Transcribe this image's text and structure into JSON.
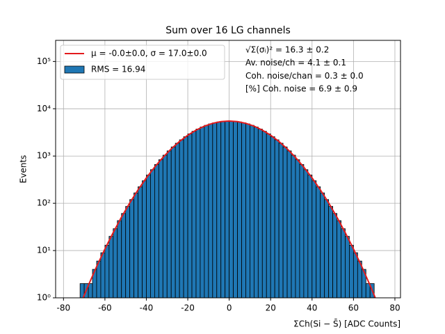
{
  "chart_data": {
    "type": "histogram",
    "title": "Sum over 16 LG channels",
    "x_label": "ΣCh(Si − S̄) [ADC Counts]",
    "y_label": "Events",
    "xlim": [
      -83.8,
      82.7
    ],
    "xticks": [
      -80,
      -60,
      -40,
      -20,
      0,
      20,
      40,
      60,
      80
    ],
    "ylim": [
      1,
      280000
    ],
    "log_y": true,
    "yticks": [
      {
        "value": 1,
        "label": "10⁰"
      },
      {
        "value": 10,
        "label": "10¹"
      },
      {
        "value": 100,
        "label": "10²"
      },
      {
        "value": 1000,
        "label": "10³"
      },
      {
        "value": 10000,
        "label": "10⁴"
      },
      {
        "value": 100000,
        "label": "10⁵"
      }
    ],
    "grid": true,
    "legend": "upper left",
    "annotations": [
      "√Σ(σᵢ)² = 16.3 ± 0.2",
      "Av. noise/ch  = 4.1 ± 0.1",
      "Coh. noise/chan  = 0.3 ± 0.0",
      "[%] Coh. noise  = 6.9 ± 0.9"
    ],
    "series": [
      {
        "name": "μ = -0.0±0.0, σ = 17.0±0.0",
        "type": "line",
        "color": "#e31a1c",
        "x": [
          -72,
          -68,
          -64,
          -60,
          -56,
          -52,
          -48,
          -44,
          -40,
          -36,
          -32,
          -28,
          -24,
          -20,
          -16,
          -12,
          -8,
          -4,
          0,
          4,
          8,
          12,
          16,
          20,
          24,
          28,
          32,
          36,
          40,
          44,
          48,
          52,
          56,
          60,
          64,
          68,
          72
        ],
        "values": [
          0.7,
          1.84,
          4.6,
          10.8,
          24,
          51,
          102,
          193,
          345,
          584,
          936,
          1417,
          2031,
          2753,
          3532,
          4287,
          4924,
          5350,
          5500,
          5350,
          4924,
          4287,
          3532,
          2753,
          2031,
          1417,
          936,
          584,
          345,
          193,
          102,
          51,
          24,
          10.8,
          4.6,
          1.84,
          0.7
        ]
      },
      {
        "name": "RMS = 16.94",
        "type": "histogram",
        "color": "#1f77b4",
        "bins": [
          -72,
          -70,
          -68,
          -66,
          -64,
          -62,
          -60,
          -58,
          -56,
          -54,
          -52,
          -50,
          -48,
          -46,
          -44,
          -42,
          -40,
          -38,
          -36,
          -34,
          -32,
          -30,
          -28,
          -26,
          -24,
          -22,
          -20,
          -18,
          -16,
          -14,
          -12,
          -10,
          -8,
          -6,
          -4,
          -2,
          0,
          2,
          4,
          6,
          8,
          10,
          12,
          14,
          16,
          18,
          20,
          22,
          24,
          26,
          28,
          30,
          32,
          34,
          36,
          38,
          40,
          42,
          44,
          46,
          48,
          50,
          52,
          54,
          56,
          58,
          60,
          62,
          64,
          66,
          68,
          70,
          72
        ],
        "values": [
          2,
          2,
          2,
          4,
          6,
          9,
          13,
          20,
          29,
          43,
          61,
          86,
          120,
          166,
          224,
          300,
          396,
          515,
          662,
          836,
          1043,
          1284,
          1558,
          1866,
          2202,
          2564,
          2945,
          3336,
          3727,
          4106,
          4462,
          4781,
          5053,
          5267,
          5415,
          5490,
          5490,
          5415,
          5267,
          5053,
          4781,
          4462,
          4106,
          3727,
          3336,
          2945,
          2564,
          2202,
          1866,
          1558,
          1284,
          1043,
          836,
          662,
          515,
          396,
          300,
          224,
          166,
          120,
          86,
          61,
          43,
          29,
          20,
          13,
          9,
          6,
          4,
          2,
          2,
          1
        ]
      }
    ]
  }
}
